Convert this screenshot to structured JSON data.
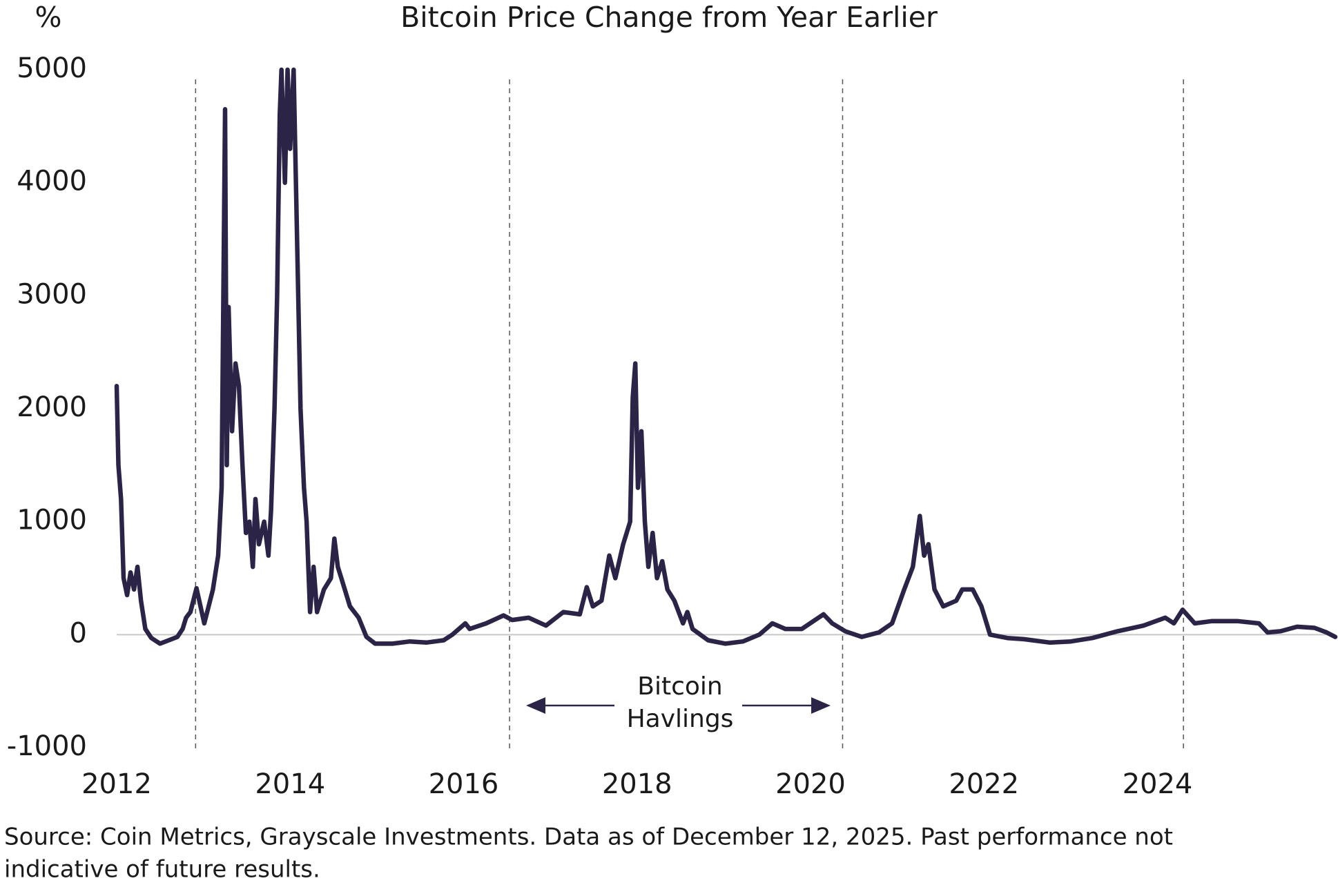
{
  "chart_data": {
    "type": "line",
    "title": "Bitcoin Price Change from Year Earlier",
    "y_label": "%",
    "annotation": [
      "Bitcoin",
      "Havlings"
    ],
    "source": [
      "Source: Coin Metrics, Grayscale Investments. Data as of December 12, 2025. Past performance not",
      "indicative of future results."
    ],
    "color": "#2b2447",
    "x": [
      2012.0,
      2012.02,
      2012.05,
      2012.08,
      2012.12,
      2012.16,
      2012.2,
      2012.24,
      2012.28,
      2012.33,
      2012.4,
      2012.5,
      2012.6,
      2012.7,
      2012.76,
      2012.8,
      2012.85,
      2012.92,
      2013.01,
      2013.11,
      2013.17,
      2013.21,
      2013.25,
      2013.27,
      2013.29,
      2013.33,
      2013.37,
      2013.41,
      2013.45,
      2013.49,
      2013.53,
      2013.57,
      2013.6,
      2013.64,
      2013.7,
      2013.75,
      2013.78,
      2013.82,
      2013.85,
      2013.88,
      2013.9,
      2013.94,
      2013.97,
      2014.0,
      2014.04,
      2014.08,
      2014.12,
      2014.16,
      2014.19,
      2014.23,
      2014.27,
      2014.31,
      2014.39,
      2014.47,
      2014.51,
      2014.55,
      2014.59,
      2014.69,
      2014.79,
      2014.88,
      2014.98,
      2015.18,
      2015.38,
      2015.57,
      2015.77,
      2015.87,
      2016.02,
      2016.07,
      2016.26,
      2016.46,
      2016.56,
      2016.75,
      2016.95,
      2017.15,
      2017.34,
      2017.42,
      2017.49,
      2017.59,
      2017.68,
      2017.75,
      2017.84,
      2017.92,
      2017.95,
      2017.98,
      2018.01,
      2018.05,
      2018.09,
      2018.13,
      2018.18,
      2018.23,
      2018.29,
      2018.35,
      2018.43,
      2018.53,
      2018.58,
      2018.64,
      2018.82,
      2019.02,
      2019.22,
      2019.41,
      2019.56,
      2019.71,
      2019.9,
      2020.15,
      2020.25,
      2020.4,
      2020.59,
      2020.79,
      2020.94,
      2021.08,
      2021.18,
      2021.26,
      2021.31,
      2021.36,
      2021.43,
      2021.53,
      2021.68,
      2021.75,
      2021.87,
      2021.97,
      2022.07,
      2022.27,
      2022.46,
      2022.76,
      2023.0,
      2023.25,
      2023.54,
      2023.84,
      2024.09,
      2024.19,
      2024.29,
      2024.43,
      2024.63,
      2024.92,
      2025.17,
      2025.27,
      2025.42,
      2025.61,
      2025.81,
      2025.95,
      2026.05
    ],
    "values": [
      2200,
      1500,
      1200,
      500,
      350,
      550,
      400,
      600,
      300,
      50,
      -30,
      -80,
      -50,
      -20,
      50,
      150,
      200,
      410,
      100,
      400,
      700,
      1300,
      4650,
      1500,
      2900,
      1800,
      2400,
      2200,
      1500,
      900,
      1000,
      600,
      1200,
      800,
      1000,
      700,
      1100,
      2000,
      3000,
      4600,
      5000,
      4000,
      5000,
      4300,
      5000,
      3500,
      2000,
      1300,
      1000,
      200,
      600,
      200,
      400,
      500,
      850,
      600,
      500,
      250,
      150,
      -20,
      -80,
      -80,
      -60,
      -70,
      -50,
      0,
      100,
      50,
      100,
      170,
      130,
      150,
      80,
      200,
      180,
      420,
      250,
      300,
      700,
      500,
      800,
      1000,
      2100,
      2400,
      1300,
      1800,
      1000,
      600,
      900,
      500,
      650,
      400,
      300,
      100,
      200,
      50,
      -50,
      -80,
      -60,
      0,
      100,
      50,
      50,
      180,
      100,
      30,
      -20,
      20,
      100,
      400,
      600,
      1050,
      700,
      800,
      400,
      250,
      300,
      400,
      400,
      250,
      0,
      -30,
      -40,
      -70,
      -60,
      -30,
      30,
      80,
      150,
      100,
      220,
      100,
      120,
      120,
      100,
      20,
      30,
      70,
      60,
      20,
      -20
    ],
    "halvings": [
      2012.91,
      2016.53,
      2020.37,
      2024.3
    ],
    "xlim": [
      2012,
      2026.05
    ],
    "xticks": [
      2012,
      2014,
      2016,
      2018,
      2020,
      2022,
      2024
    ],
    "ylim": [
      -1000,
      5000
    ],
    "yticks": [
      -1000,
      0,
      1000,
      2000,
      3000,
      4000,
      5000
    ]
  }
}
